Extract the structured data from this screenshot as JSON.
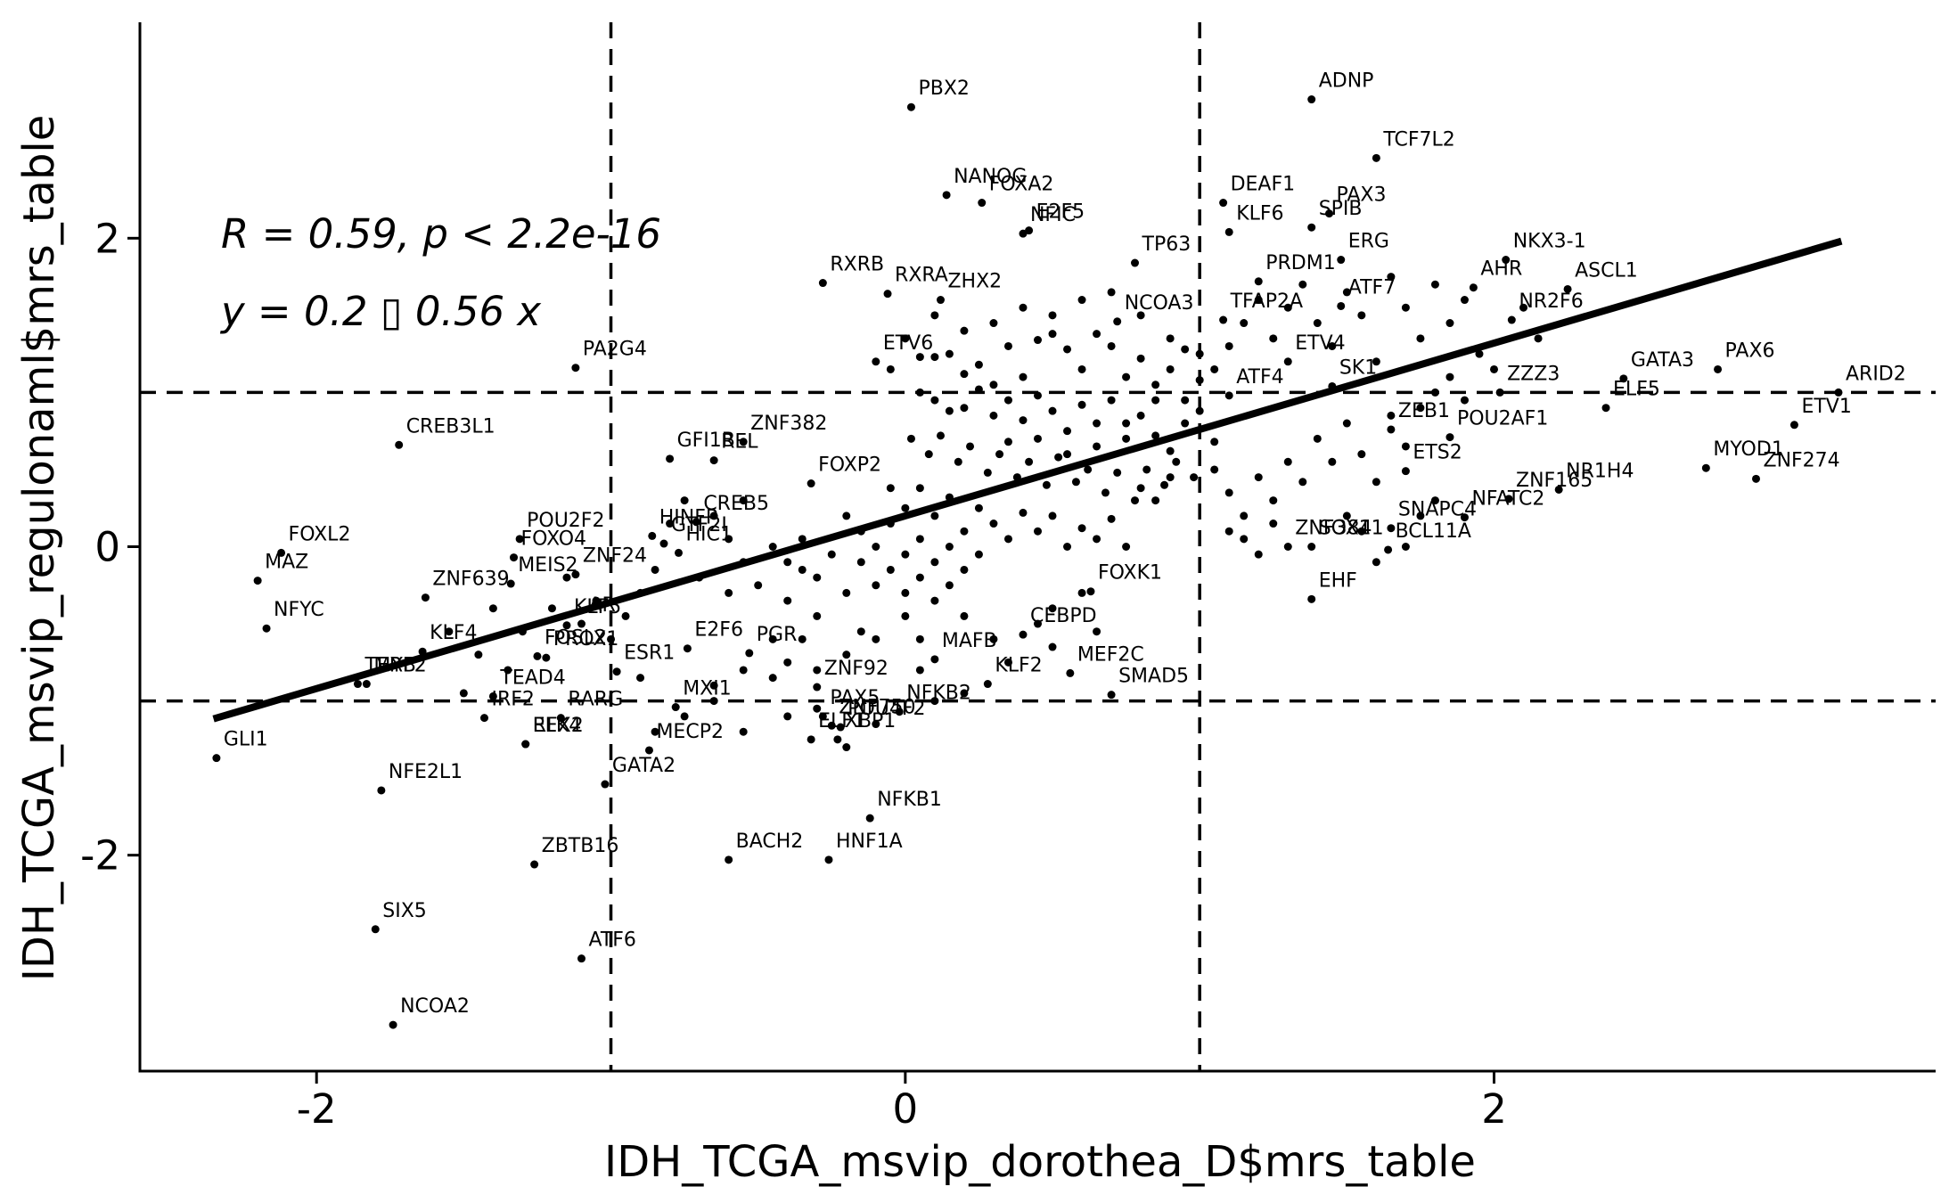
{
  "chart_data": {
    "type": "scatter",
    "xlabel": "IDH_TCGA_msvip_dorothea_D$mrs_table",
    "ylabel": "IDH_TCGA_msvip_regulonaml$mrs_table",
    "xlim": [
      -2.6,
      3.5
    ],
    "ylim": [
      -3.4,
      3.4
    ],
    "x_ticks": [
      -2,
      0,
      2
    ],
    "y_ticks": [
      -2,
      0,
      2
    ],
    "grid": false,
    "reference_lines": {
      "vertical": [
        -1,
        1
      ],
      "horizontal": [
        -1,
        1
      ],
      "style": "dashed"
    },
    "fit": {
      "intercept": 0.2,
      "slope": 0.56,
      "x_range": [
        -2.35,
        3.18
      ]
    },
    "annotation": {
      "stat": "R  =  0.59,  p  <  2.2e-16",
      "equation": "y  =  0.2 ▯ 0.56  x"
    },
    "labeled_points": [
      {
        "label": "ADNP",
        "x": 1.38,
        "y": 2.9
      },
      {
        "label": "PBX2",
        "x": 0.02,
        "y": 2.85
      },
      {
        "label": "TCF7L2",
        "x": 1.6,
        "y": 2.52
      },
      {
        "label": "DEAF1",
        "x": 1.08,
        "y": 2.23
      },
      {
        "label": "NANOG",
        "x": 0.14,
        "y": 2.28
      },
      {
        "label": "FOXA2",
        "x": 0.26,
        "y": 2.23
      },
      {
        "label": "PAX3",
        "x": 1.44,
        "y": 2.16
      },
      {
        "label": "SPIB",
        "x": 1.38,
        "y": 2.07
      },
      {
        "label": "NFIC",
        "x": 0.4,
        "y": 2.03
      },
      {
        "label": "KLF6",
        "x": 1.1,
        "y": 2.04
      },
      {
        "label": "E2F5",
        "x": 0.42,
        "y": 2.05
      },
      {
        "label": "TP63",
        "x": 0.78,
        "y": 1.84
      },
      {
        "label": "PRDM1",
        "x": 1.2,
        "y": 1.72
      },
      {
        "label": "NKX3-1",
        "x": 2.04,
        "y": 1.86
      },
      {
        "label": "ERG",
        "x": 1.48,
        "y": 1.86
      },
      {
        "label": "ASCL1",
        "x": 2.25,
        "y": 1.67
      },
      {
        "label": "RXRB",
        "x": -0.28,
        "y": 1.71
      },
      {
        "label": "RXRA",
        "x": -0.06,
        "y": 1.64
      },
      {
        "label": "ZHX2",
        "x": 0.12,
        "y": 1.6
      },
      {
        "label": "NCOA3",
        "x": 0.72,
        "y": 1.46
      },
      {
        "label": "TFAP2A",
        "x": 1.08,
        "y": 1.47
      },
      {
        "label": "ATF7",
        "x": 1.48,
        "y": 1.56
      },
      {
        "label": "AHR",
        "x": 1.93,
        "y": 1.68
      },
      {
        "label": "NR2F6",
        "x": 2.06,
        "y": 1.47
      },
      {
        "label": "ETV6",
        "x": -0.1,
        "y": 1.2
      },
      {
        "label": "ETV4",
        "x": 1.3,
        "y": 1.2
      },
      {
        "label": "ATF4",
        "x": 1.1,
        "y": 0.98
      },
      {
        "label": "SK1",
        "x": 1.45,
        "y": 1.04
      },
      {
        "label": "ZZZ3",
        "x": 2.02,
        "y": 1.0
      },
      {
        "label": "GATA3",
        "x": 2.44,
        "y": 1.09
      },
      {
        "label": "PAX6",
        "x": 2.76,
        "y": 1.15
      },
      {
        "label": "ARID2",
        "x": 3.17,
        "y": 1.0
      },
      {
        "label": "PA2G4",
        "x": -1.12,
        "y": 1.16
      },
      {
        "label": "ZNF382",
        "x": -0.55,
        "y": 0.68
      },
      {
        "label": "GFI1B",
        "x": -0.8,
        "y": 0.57
      },
      {
        "label": "REL",
        "x": -0.65,
        "y": 0.56
      },
      {
        "label": "CREB3L1",
        "x": -1.72,
        "y": 0.66
      },
      {
        "label": "ELF5",
        "x": 2.38,
        "y": 0.9
      },
      {
        "label": "ZEB1",
        "x": 1.65,
        "y": 0.76
      },
      {
        "label": "POU2AF1",
        "x": 1.85,
        "y": 0.71
      },
      {
        "label": "MYOD1",
        "x": 2.72,
        "y": 0.51
      },
      {
        "label": "ETV1",
        "x": 3.02,
        "y": 0.79
      },
      {
        "label": "FOXP2",
        "x": -0.32,
        "y": 0.41
      },
      {
        "label": "HINFP",
        "x": -0.86,
        "y": 0.07
      },
      {
        "label": "ETS2",
        "x": 1.7,
        "y": 0.49
      },
      {
        "label": "NR1H4",
        "x": 2.22,
        "y": 0.37
      },
      {
        "label": "ZNF274",
        "x": 2.89,
        "y": 0.44
      },
      {
        "label": "POU2F2",
        "x": -1.31,
        "y": 0.05
      },
      {
        "label": "FOXO4",
        "x": -1.33,
        "y": -0.07
      },
      {
        "label": "CREB5",
        "x": -0.71,
        "y": 0.16
      },
      {
        "label": "SOX11",
        "x": 1.38,
        "y": 0.0
      },
      {
        "label": "SNAPC4",
        "x": 1.65,
        "y": 0.12
      },
      {
        "label": "ZNF165",
        "x": 2.05,
        "y": 0.31
      },
      {
        "label": "NFATC2",
        "x": 1.9,
        "y": 0.19
      },
      {
        "label": "FOXL2",
        "x": -2.12,
        "y": -0.04
      },
      {
        "label": "MAZ",
        "x": -2.2,
        "y": -0.22
      },
      {
        "label": "MEIS2",
        "x": -1.34,
        "y": -0.24
      },
      {
        "label": "ZNF24",
        "x": -1.12,
        "y": -0.18
      },
      {
        "label": "GTF2I",
        "x": -0.82,
        "y": 0.02
      },
      {
        "label": "HIC1",
        "x": -0.77,
        "y": -0.04
      },
      {
        "label": "ZNF384",
        "x": 1.3,
        "y": 0.0
      },
      {
        "label": "BCL11A",
        "x": 1.64,
        "y": -0.02
      },
      {
        "label": "NFYC",
        "x": -2.17,
        "y": -0.53
      },
      {
        "label": "ZNF639",
        "x": -1.63,
        "y": -0.33
      },
      {
        "label": "KLF5",
        "x": -1.15,
        "y": -0.51
      },
      {
        "label": "FOXK1",
        "x": 0.63,
        "y": -0.29
      },
      {
        "label": "EHF",
        "x": 1.38,
        "y": -0.34
      },
      {
        "label": "MYB",
        "x": -1.83,
        "y": -0.89
      },
      {
        "label": "KLF4",
        "x": -1.64,
        "y": -0.68
      },
      {
        "label": "PROX1",
        "x": -1.22,
        "y": -0.72
      },
      {
        "label": "AR",
        "x": -1.1,
        "y": -0.5
      },
      {
        "label": "E2F6",
        "x": -0.74,
        "y": -0.66
      },
      {
        "label": "PGR",
        "x": -0.53,
        "y": -0.69
      },
      {
        "label": "MAFB",
        "x": 0.1,
        "y": -0.73
      },
      {
        "label": "CEBPD",
        "x": 0.4,
        "y": -0.57
      },
      {
        "label": "MEF2C",
        "x": 0.56,
        "y": -0.82
      },
      {
        "label": "TERF2",
        "x": -1.86,
        "y": -0.89
      },
      {
        "label": "FOSL2",
        "x": -1.25,
        "y": -0.71
      },
      {
        "label": "ESR1",
        "x": -0.98,
        "y": -0.81
      },
      {
        "label": "ZNF92",
        "x": -0.3,
        "y": -0.91
      },
      {
        "label": "PAX5",
        "x": -0.28,
        "y": -1.1
      },
      {
        "label": "KLF2",
        "x": 0.28,
        "y": -0.89
      },
      {
        "label": "SMAD5",
        "x": 0.7,
        "y": -0.96
      },
      {
        "label": "TEAD4",
        "x": -1.4,
        "y": -0.97
      },
      {
        "label": "RARG",
        "x": -1.17,
        "y": -1.11
      },
      {
        "label": "ZNF750",
        "x": -0.25,
        "y": -1.16
      },
      {
        "label": "POU4F2",
        "x": -0.22,
        "y": -1.17
      },
      {
        "label": "NFKB2",
        "x": -0.02,
        "y": -1.07
      },
      {
        "label": "IRF2",
        "x": -1.43,
        "y": -1.11
      },
      {
        "label": "ELK4",
        "x": -1.29,
        "y": -1.28
      },
      {
        "label": "MXI1",
        "x": -0.78,
        "y": -1.04
      },
      {
        "label": "ELF1",
        "x": -0.32,
        "y": -1.25
      },
      {
        "label": "XBP1",
        "x": -0.23,
        "y": -1.25
      },
      {
        "label": "GLI1",
        "x": -2.34,
        "y": -1.37
      },
      {
        "label": "RFX2",
        "x": -1.29,
        "y": -1.28
      },
      {
        "label": "MECP2",
        "x": -0.87,
        "y": -1.32
      },
      {
        "label": "NFE2L1",
        "x": -1.78,
        "y": -1.58
      },
      {
        "label": "GATA2",
        "x": -1.02,
        "y": -1.54
      },
      {
        "label": "NFKB1",
        "x": -0.12,
        "y": -1.76
      },
      {
        "label": "BACH2",
        "x": -0.6,
        "y": -2.03
      },
      {
        "label": "HNF1A",
        "x": -0.26,
        "y": -2.03
      },
      {
        "label": "ZBTB16",
        "x": -1.26,
        "y": -2.06
      },
      {
        "label": "SIX5",
        "x": -1.8,
        "y": -2.48
      },
      {
        "label": "ATF6",
        "x": -1.1,
        "y": -2.67
      },
      {
        "label": "NCOA2",
        "x": -1.74,
        "y": -3.1
      }
    ],
    "unlabeled_points": [
      [
        0.05,
        1.23
      ],
      [
        0.1,
        1.23
      ],
      [
        0.15,
        1.25
      ],
      [
        0.2,
        1.12
      ],
      [
        0.25,
        1.18
      ],
      [
        0.3,
        1.05
      ],
      [
        0.35,
        1.3
      ],
      [
        0.4,
        1.1
      ],
      [
        0.45,
        1.34
      ],
      [
        0.5,
        1.38
      ],
      [
        0.55,
        1.28
      ],
      [
        0.6,
        1.15
      ],
      [
        0.65,
        1.38
      ],
      [
        0.7,
        1.3
      ],
      [
        0.75,
        1.1
      ],
      [
        0.8,
        1.22
      ],
      [
        0.85,
        1.05
      ],
      [
        0.9,
        1.15
      ],
      [
        0.95,
        1.28
      ],
      [
        1.0,
        1.08
      ],
      [
        0.05,
        1.0
      ],
      [
        0.1,
        0.95
      ],
      [
        0.15,
        0.88
      ],
      [
        0.2,
        0.9
      ],
      [
        0.25,
        1.02
      ],
      [
        0.3,
        0.85
      ],
      [
        0.35,
        0.95
      ],
      [
        0.4,
        0.82
      ],
      [
        0.45,
        0.98
      ],
      [
        0.5,
        0.88
      ],
      [
        0.55,
        0.75
      ],
      [
        0.6,
        0.92
      ],
      [
        0.65,
        0.8
      ],
      [
        0.7,
        0.95
      ],
      [
        0.75,
        0.7
      ],
      [
        0.8,
        0.85
      ],
      [
        0.85,
        0.72
      ],
      [
        0.9,
        0.62
      ],
      [
        0.95,
        0.8
      ],
      [
        1.05,
        0.68
      ],
      [
        0.02,
        0.7
      ],
      [
        0.08,
        0.6
      ],
      [
        0.12,
        0.72
      ],
      [
        0.18,
        0.55
      ],
      [
        0.22,
        0.65
      ],
      [
        0.28,
        0.48
      ],
      [
        0.32,
        0.6
      ],
      [
        0.38,
        0.45
      ],
      [
        0.42,
        0.55
      ],
      [
        0.48,
        0.4
      ],
      [
        0.52,
        0.58
      ],
      [
        0.58,
        0.42
      ],
      [
        0.62,
        0.5
      ],
      [
        0.68,
        0.35
      ],
      [
        0.72,
        0.48
      ],
      [
        0.78,
        0.3
      ],
      [
        0.82,
        0.5
      ],
      [
        0.88,
        0.4
      ],
      [
        0.92,
        0.55
      ],
      [
        0.98,
        0.45
      ],
      [
        -0.05,
        0.38
      ],
      [
        0.0,
        0.25
      ],
      [
        0.05,
        0.38
      ],
      [
        0.1,
        0.2
      ],
      [
        0.15,
        0.32
      ],
      [
        0.2,
        0.1
      ],
      [
        0.25,
        0.25
      ],
      [
        0.3,
        0.15
      ],
      [
        0.35,
        0.05
      ],
      [
        0.4,
        0.22
      ],
      [
        0.45,
        0.1
      ],
      [
        0.5,
        0.2
      ],
      [
        0.55,
        0.0
      ],
      [
        0.6,
        0.12
      ],
      [
        0.65,
        0.05
      ],
      [
        0.7,
        0.18
      ],
      [
        0.75,
        0.0
      ],
      [
        0.8,
        0.38
      ],
      [
        0.85,
        0.3
      ],
      [
        0.9,
        0.45
      ],
      [
        -0.2,
        0.2
      ],
      [
        -0.15,
        0.1
      ],
      [
        -0.1,
        0.0
      ],
      [
        -0.05,
        0.15
      ],
      [
        0.0,
        -0.05
      ],
      [
        0.05,
        0.05
      ],
      [
        0.1,
        -0.1
      ],
      [
        0.15,
        0.0
      ],
      [
        0.2,
        -0.15
      ],
      [
        0.25,
        -0.05
      ],
      [
        -0.3,
        -0.2
      ],
      [
        -0.25,
        -0.05
      ],
      [
        -0.2,
        -0.3
      ],
      [
        -0.15,
        -0.1
      ],
      [
        -0.1,
        -0.25
      ],
      [
        -0.05,
        -0.15
      ],
      [
        0.0,
        -0.3
      ],
      [
        0.05,
        -0.2
      ],
      [
        0.1,
        -0.35
      ],
      [
        0.15,
        -0.25
      ],
      [
        -0.4,
        -0.35
      ],
      [
        -0.35,
        -0.15
      ],
      [
        -0.3,
        -0.45
      ],
      [
        -0.45,
        -0.6
      ],
      [
        -0.4,
        -0.75
      ],
      [
        -0.35,
        -0.6
      ],
      [
        -0.3,
        -0.8
      ],
      [
        -0.45,
        -0.85
      ],
      [
        -0.55,
        -0.8
      ],
      [
        -0.65,
        -0.9
      ],
      [
        -0.15,
        -0.55
      ],
      [
        -0.2,
        -0.7
      ],
      [
        -0.1,
        -0.6
      ],
      [
        0.0,
        -0.45
      ],
      [
        0.05,
        -0.6
      ],
      [
        0.2,
        -0.45
      ],
      [
        0.3,
        -0.6
      ],
      [
        0.45,
        -0.5
      ],
      [
        0.5,
        -0.4
      ],
      [
        0.6,
        -0.3
      ],
      [
        -0.7,
        -0.2
      ],
      [
        -0.6,
        -0.3
      ],
      [
        -0.55,
        -0.1
      ],
      [
        -0.5,
        -0.25
      ],
      [
        -0.45,
        0.0
      ],
      [
        -0.4,
        -0.1
      ],
      [
        -0.35,
        0.05
      ],
      [
        -0.6,
        0.05
      ],
      [
        -0.65,
        0.2
      ],
      [
        -0.55,
        0.3
      ],
      [
        -0.75,
        0.3
      ],
      [
        -0.8,
        0.15
      ],
      [
        -0.85,
        -0.15
      ],
      [
        -0.9,
        -0.3
      ],
      [
        -0.95,
        -0.45
      ],
      [
        -1.0,
        -0.6
      ],
      [
        -1.05,
        -0.35
      ],
      [
        -1.15,
        -0.2
      ],
      [
        -1.2,
        -0.4
      ],
      [
        -1.3,
        -0.55
      ],
      [
        -1.35,
        -0.8
      ],
      [
        -1.45,
        -0.7
      ],
      [
        -1.5,
        -0.95
      ],
      [
        -1.55,
        -0.55
      ],
      [
        -1.4,
        -0.4
      ],
      [
        -0.9,
        -0.85
      ],
      [
        -0.85,
        -1.2
      ],
      [
        -0.75,
        -1.1
      ],
      [
        -0.65,
        -1.0
      ],
      [
        -0.55,
        -1.2
      ],
      [
        -0.4,
        -1.1
      ],
      [
        -0.3,
        -1.05
      ],
      [
        -0.2,
        -1.3
      ],
      [
        -0.1,
        -1.15
      ],
      [
        0.05,
        -0.8
      ],
      [
        0.1,
        -1.0
      ],
      [
        0.2,
        -0.95
      ],
      [
        0.35,
        -0.75
      ],
      [
        0.5,
        -0.65
      ],
      [
        0.65,
        -0.55
      ],
      [
        1.05,
        0.5
      ],
      [
        1.1,
        0.35
      ],
      [
        1.15,
        0.2
      ],
      [
        1.2,
        0.45
      ],
      [
        1.25,
        0.3
      ],
      [
        1.3,
        0.55
      ],
      [
        1.35,
        0.42
      ],
      [
        1.4,
        0.7
      ],
      [
        1.45,
        0.55
      ],
      [
        1.5,
        0.8
      ],
      [
        1.55,
        0.6
      ],
      [
        1.6,
        0.42
      ],
      [
        1.65,
        0.85
      ],
      [
        1.7,
        0.65
      ],
      [
        1.75,
        0.9
      ],
      [
        1.8,
        1.0
      ],
      [
        1.85,
        1.1
      ],
      [
        1.9,
        0.95
      ],
      [
        1.95,
        1.25
      ],
      [
        2.0,
        1.15
      ],
      [
        1.05,
        1.15
      ],
      [
        1.1,
        1.3
      ],
      [
        1.15,
        1.45
      ],
      [
        1.2,
        1.6
      ],
      [
        1.25,
        1.35
      ],
      [
        1.3,
        1.55
      ],
      [
        1.35,
        1.7
      ],
      [
        1.4,
        1.45
      ],
      [
        1.45,
        1.3
      ],
      [
        1.5,
        1.65
      ],
      [
        1.55,
        1.5
      ],
      [
        1.6,
        1.2
      ],
      [
        1.65,
        1.75
      ],
      [
        1.7,
        1.55
      ],
      [
        1.75,
        1.35
      ],
      [
        1.8,
        1.7
      ],
      [
        1.85,
        1.45
      ],
      [
        1.9,
        1.6
      ],
      [
        2.1,
        1.55
      ],
      [
        2.15,
        1.35
      ],
      [
        1.1,
        0.1
      ],
      [
        1.15,
        0.05
      ],
      [
        1.2,
        -0.05
      ],
      [
        1.25,
        0.15
      ],
      [
        1.5,
        0.2
      ],
      [
        1.55,
        0.1
      ],
      [
        1.6,
        -0.1
      ],
      [
        1.7,
        0.0
      ],
      [
        1.75,
        0.2
      ],
      [
        1.8,
        0.3
      ],
      [
        0.3,
        1.45
      ],
      [
        0.4,
        1.55
      ],
      [
        0.5,
        1.5
      ],
      [
        0.6,
        1.6
      ],
      [
        0.7,
        1.65
      ],
      [
        0.2,
        1.4
      ],
      [
        0.1,
        1.5
      ],
      [
        0.0,
        1.35
      ],
      [
        -0.05,
        1.15
      ],
      [
        0.8,
        1.5
      ],
      [
        0.9,
        1.35
      ],
      [
        1.0,
        1.25
      ],
      [
        0.95,
        0.95
      ],
      [
        1.0,
        0.88
      ],
      [
        0.85,
        0.95
      ],
      [
        0.75,
        0.8
      ],
      [
        0.65,
        0.65
      ],
      [
        0.55,
        0.6
      ],
      [
        0.45,
        0.7
      ],
      [
        0.35,
        0.68
      ]
    ]
  }
}
